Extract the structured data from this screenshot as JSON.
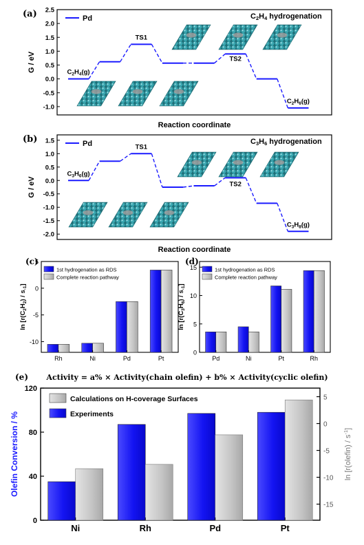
{
  "colors": {
    "blue": "#1a1aff",
    "blue_dark": "#0a0ad8",
    "grey": "#bdbdbd",
    "grey_dark": "#8a8a8a",
    "surface": "#2b8f99",
    "surface_edge": "#125a63"
  },
  "chart_data": [
    {
      "id": "a",
      "panel_label": "(a)",
      "type": "line",
      "title": "C2H4 hydrogenation",
      "title_parts": [
        "C",
        "2",
        "H",
        "4",
        " hydrogenation"
      ],
      "legend": [
        "Pd"
      ],
      "xlabel": "Reaction coordinate",
      "ylabel": "G / eV",
      "ylim": [
        -1.3,
        2.5
      ],
      "yticks": [
        "-1.0",
        "-0.5",
        "0.0",
        "0.5",
        "1.0",
        "1.5",
        "2.0",
        "2.5"
      ],
      "ytick_values": [
        -1.0,
        -0.5,
        0.0,
        0.5,
        1.0,
        1.5,
        2.0,
        2.5
      ],
      "series": [
        {
          "name": "Pd",
          "values": [
            0.0,
            0.62,
            1.25,
            0.57,
            0.57,
            0.9,
            0.0,
            -1.05
          ]
        }
      ],
      "annotations": [
        {
          "parts": [
            "C",
            "2",
            "H",
            "4",
            "(g)"
          ],
          "level": 0
        },
        {
          "parts": [
            "TS1"
          ],
          "level": 2
        },
        {
          "parts": [
            "TS2"
          ],
          "level": 5
        },
        {
          "parts": [
            "C",
            "2",
            "H",
            "6",
            "(g)"
          ],
          "level": 7
        }
      ]
    },
    {
      "id": "b",
      "panel_label": "(b)",
      "type": "line",
      "title": "C3H6 hydrogenation",
      "title_parts": [
        "C",
        "3",
        "H",
        "6",
        " hydrogenation"
      ],
      "legend": [
        "Pd"
      ],
      "xlabel": "Reaction coordinate",
      "ylabel": "G / eV",
      "ylim": [
        -2.2,
        1.7
      ],
      "yticks": [
        "-2.0",
        "-1.5",
        "-1.0",
        "-0.5",
        "0.0",
        "0.5",
        "1.0",
        "1.5"
      ],
      "ytick_values": [
        -2.0,
        -1.5,
        -1.0,
        -0.5,
        0.0,
        0.5,
        1.0,
        1.5
      ],
      "series": [
        {
          "name": "Pd",
          "values": [
            0.0,
            0.72,
            1.0,
            -0.25,
            -0.2,
            0.1,
            -0.85,
            -1.9
          ]
        }
      ],
      "annotations": [
        {
          "parts": [
            "C",
            "3",
            "H",
            "6",
            "(g)"
          ],
          "level": 0
        },
        {
          "parts": [
            "TS1"
          ],
          "level": 2
        },
        {
          "parts": [
            "TS2"
          ],
          "level": 5
        },
        {
          "parts": [
            "C",
            "3",
            "H",
            "8",
            "(g)"
          ],
          "level": 7
        }
      ]
    },
    {
      "id": "c",
      "panel_label": "(c)",
      "type": "bar",
      "ylabel_parts": [
        "ln [r(C",
        "2",
        "H",
        "2",
        ") / s",
        "-1",
        "]"
      ],
      "categories": [
        "Rh",
        "Ni",
        "Pd",
        "Pt"
      ],
      "ylim": [
        -12,
        5
      ],
      "yticks": [
        "-10",
        "-5",
        "0",
        "5"
      ],
      "ytick_values": [
        -10,
        -5,
        0,
        5
      ],
      "series": [
        {
          "name": "1st hydrogenation as RDS",
          "values": [
            -10.5,
            -10.3,
            -2.5,
            3.4
          ]
        },
        {
          "name": "Complete reaction pathway",
          "values": [
            -10.5,
            -10.3,
            -2.5,
            3.4
          ]
        }
      ]
    },
    {
      "id": "d",
      "panel_label": "(d)",
      "type": "bar",
      "ylabel_parts": [
        "ln [r(C",
        "3",
        "H",
        "6",
        ") / s",
        "-1",
        "]"
      ],
      "categories": [
        "Pd",
        "Ni",
        "Pt",
        "Rh"
      ],
      "ylim": [
        0,
        16
      ],
      "yticks": [
        "0",
        "5",
        "10",
        "15"
      ],
      "ytick_values": [
        0,
        5,
        10,
        15
      ],
      "series": [
        {
          "name": "1st hydrogenation as RDS",
          "values": [
            3.6,
            4.5,
            11.7,
            14.4
          ]
        },
        {
          "name": "Complete reaction pathway",
          "values": [
            3.6,
            3.6,
            11.1,
            14.4
          ]
        }
      ]
    },
    {
      "id": "e",
      "panel_label": "(e)",
      "type": "bar",
      "equation": "Activity = a% × Activity(chain olefin) + b% × Activity(cyclic olefin)",
      "categories": [
        "Ni",
        "Rh",
        "Pd",
        "Pt"
      ],
      "ylabel_left": "Olefin Conversion / %",
      "ylim_left": [
        0,
        120
      ],
      "yticks_left": [
        "0",
        "40",
        "80",
        "120"
      ],
      "ytick_values_left": [
        0,
        40,
        80,
        120
      ],
      "ylabel_right": "ln [r(olefin) / s-1]",
      "ylabel_right_parts": [
        "ln [r(olefin) / s",
        "-1",
        "]"
      ],
      "ylim_right": [
        -18,
        6.6
      ],
      "yticks_right": [
        "-15",
        "-10",
        "-5",
        "0",
        "5"
      ],
      "ytick_values_right": [
        -15,
        -10,
        -5,
        0,
        5
      ],
      "series": [
        {
          "name": "Experiments",
          "axis": "left",
          "values": [
            35,
            87,
            97,
            98
          ]
        },
        {
          "name": "Calculations on H-coverage Surfaces",
          "axis": "right",
          "values": [
            -8.4,
            -7.6,
            -2.1,
            4.4
          ]
        }
      ]
    }
  ]
}
